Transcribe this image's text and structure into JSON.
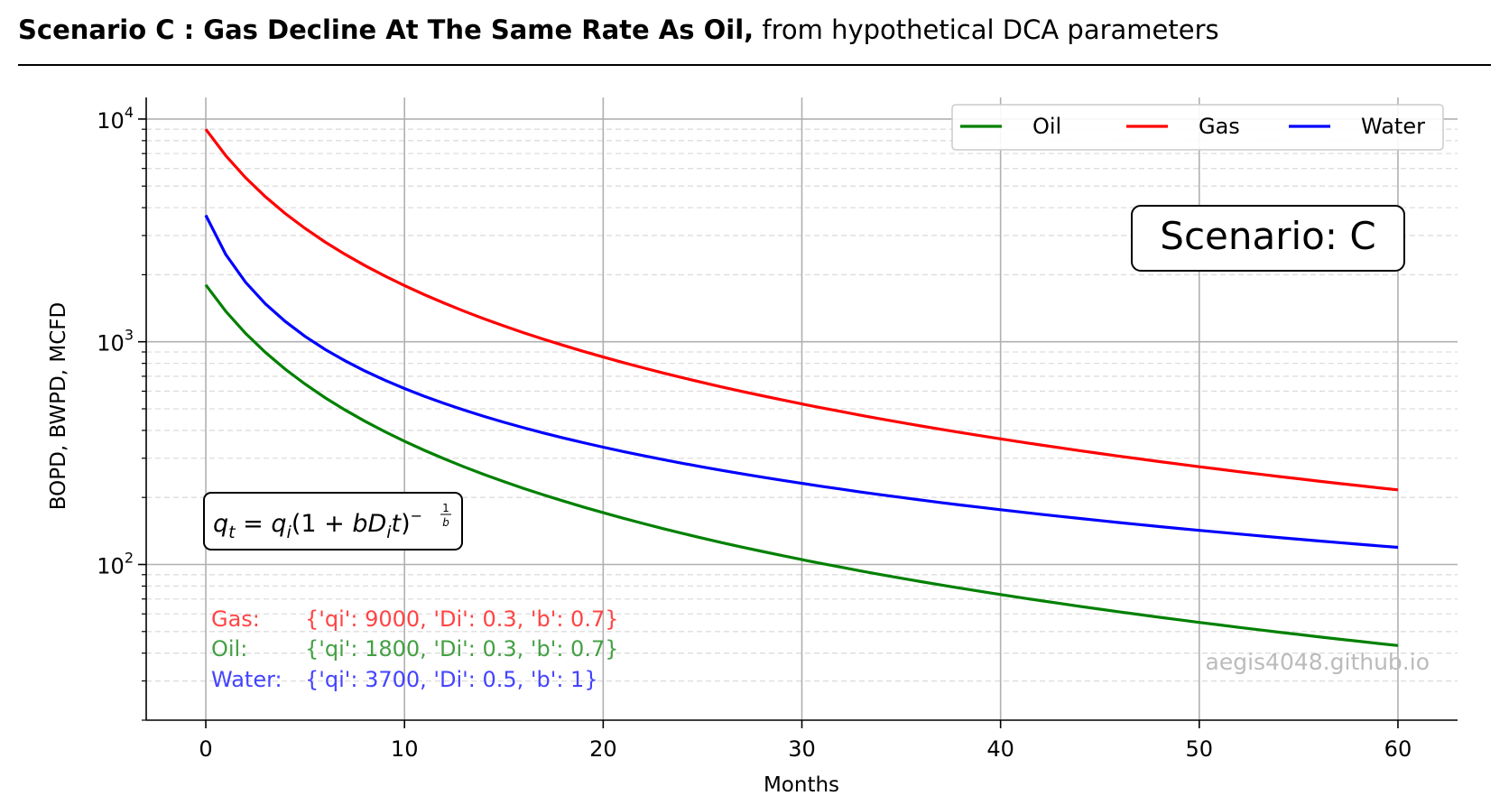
{
  "header": {
    "title_bold": "Scenario C :  Gas Decline At The Same Rate As Oil,",
    "title_rest": "from hypothetical DCA parameters"
  },
  "chart_data": {
    "type": "line",
    "xlabel": "Months",
    "ylabel": "BOPD, BWPD, MCFD",
    "x_scale": "linear",
    "y_scale": "log",
    "xlim": [
      -3,
      63
    ],
    "ylim": [
      20,
      12500
    ],
    "xticks": [
      0,
      10,
      20,
      30,
      40,
      50,
      60
    ],
    "yticks": [
      100,
      1000,
      10000
    ],
    "ytick_labels": [
      {
        "base": "10",
        "exp": "2"
      },
      {
        "base": "10",
        "exp": "3"
      },
      {
        "base": "10",
        "exp": "4"
      }
    ],
    "grid": true,
    "legend_position": "top-right",
    "legend": [
      "Oil",
      "Gas",
      "Water"
    ],
    "series": [
      {
        "name": "Oil",
        "color": "#008000",
        "model": "hyperbolic",
        "qi": 1800,
        "Di": 0.3,
        "b": 0.7,
        "x_range": [
          0,
          60
        ]
      },
      {
        "name": "Gas",
        "color": "#ff0000",
        "model": "hyperbolic",
        "qi": 9000,
        "Di": 0.3,
        "b": 0.7,
        "x_range": [
          0,
          60
        ]
      },
      {
        "name": "Water",
        "color": "#0000ff",
        "model": "hyperbolic",
        "qi": 3700,
        "Di": 0.5,
        "b": 1,
        "x_range": [
          0,
          60
        ]
      }
    ],
    "annotations": {
      "scenario_box": "Scenario: C",
      "formula": {
        "lhs": "q",
        "lhs_sub": "t",
        "eq": " = ",
        "q": "q",
        "q_sub": "i",
        "open": "(1 + ",
        "b": "b",
        "D": "D",
        "D_sub": "i",
        "t": "t",
        "close": ")",
        "exp_sign": "−",
        "exp_num": "1",
        "exp_den": "b"
      },
      "params": [
        {
          "label": "Gas:",
          "text": "{'qi': 9000, 'Di': 0.3, 'b': 0.7}",
          "color": "#ff4444"
        },
        {
          "label": "Oil:",
          "text": "{'qi': 1800, 'Di': 0.3, 'b': 0.7}",
          "color": "#44a044"
        },
        {
          "label": "Water:",
          "text": "{'qi': 3700, 'Di': 0.5, 'b': 1}",
          "color": "#4444ff"
        }
      ],
      "watermark": "aegis4048.github.io"
    }
  }
}
